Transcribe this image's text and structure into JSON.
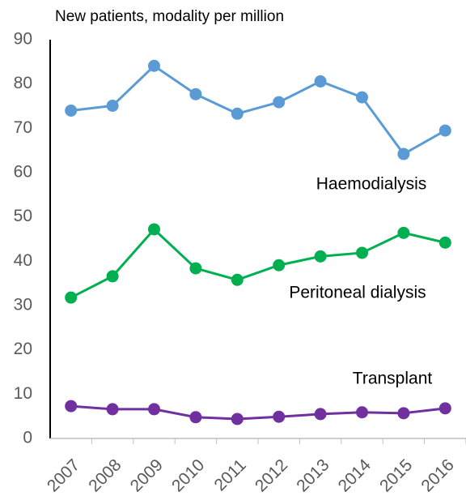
{
  "chart_data": {
    "type": "line",
    "title": "New patients, modality per million",
    "categories": [
      "2007",
      "2008",
      "2009",
      "2010",
      "2011",
      "2012",
      "2013",
      "2014",
      "2015",
      "2016"
    ],
    "series": [
      {
        "name": "Haemodialysis",
        "color": "#5b9bd5",
        "values": [
          74.0,
          75.1,
          84.1,
          77.7,
          73.3,
          75.9,
          80.6,
          77.0,
          64.2,
          69.5
        ]
      },
      {
        "name": "Peritoneal dialysis",
        "color": "#00b050",
        "values": [
          31.8,
          36.6,
          47.2,
          38.4,
          35.8,
          39.1,
          41.1,
          41.9,
          46.4,
          44.2
        ]
      },
      {
        "name": "Transplant",
        "color": "#7030a0",
        "values": [
          7.3,
          6.6,
          6.6,
          4.8,
          4.4,
          4.9,
          5.5,
          5.9,
          5.7,
          6.8
        ]
      }
    ],
    "ylim": [
      0,
      90
    ],
    "yticks": [
      0,
      10,
      20,
      30,
      40,
      50,
      60,
      70,
      80,
      90
    ],
    "grid": false
  }
}
